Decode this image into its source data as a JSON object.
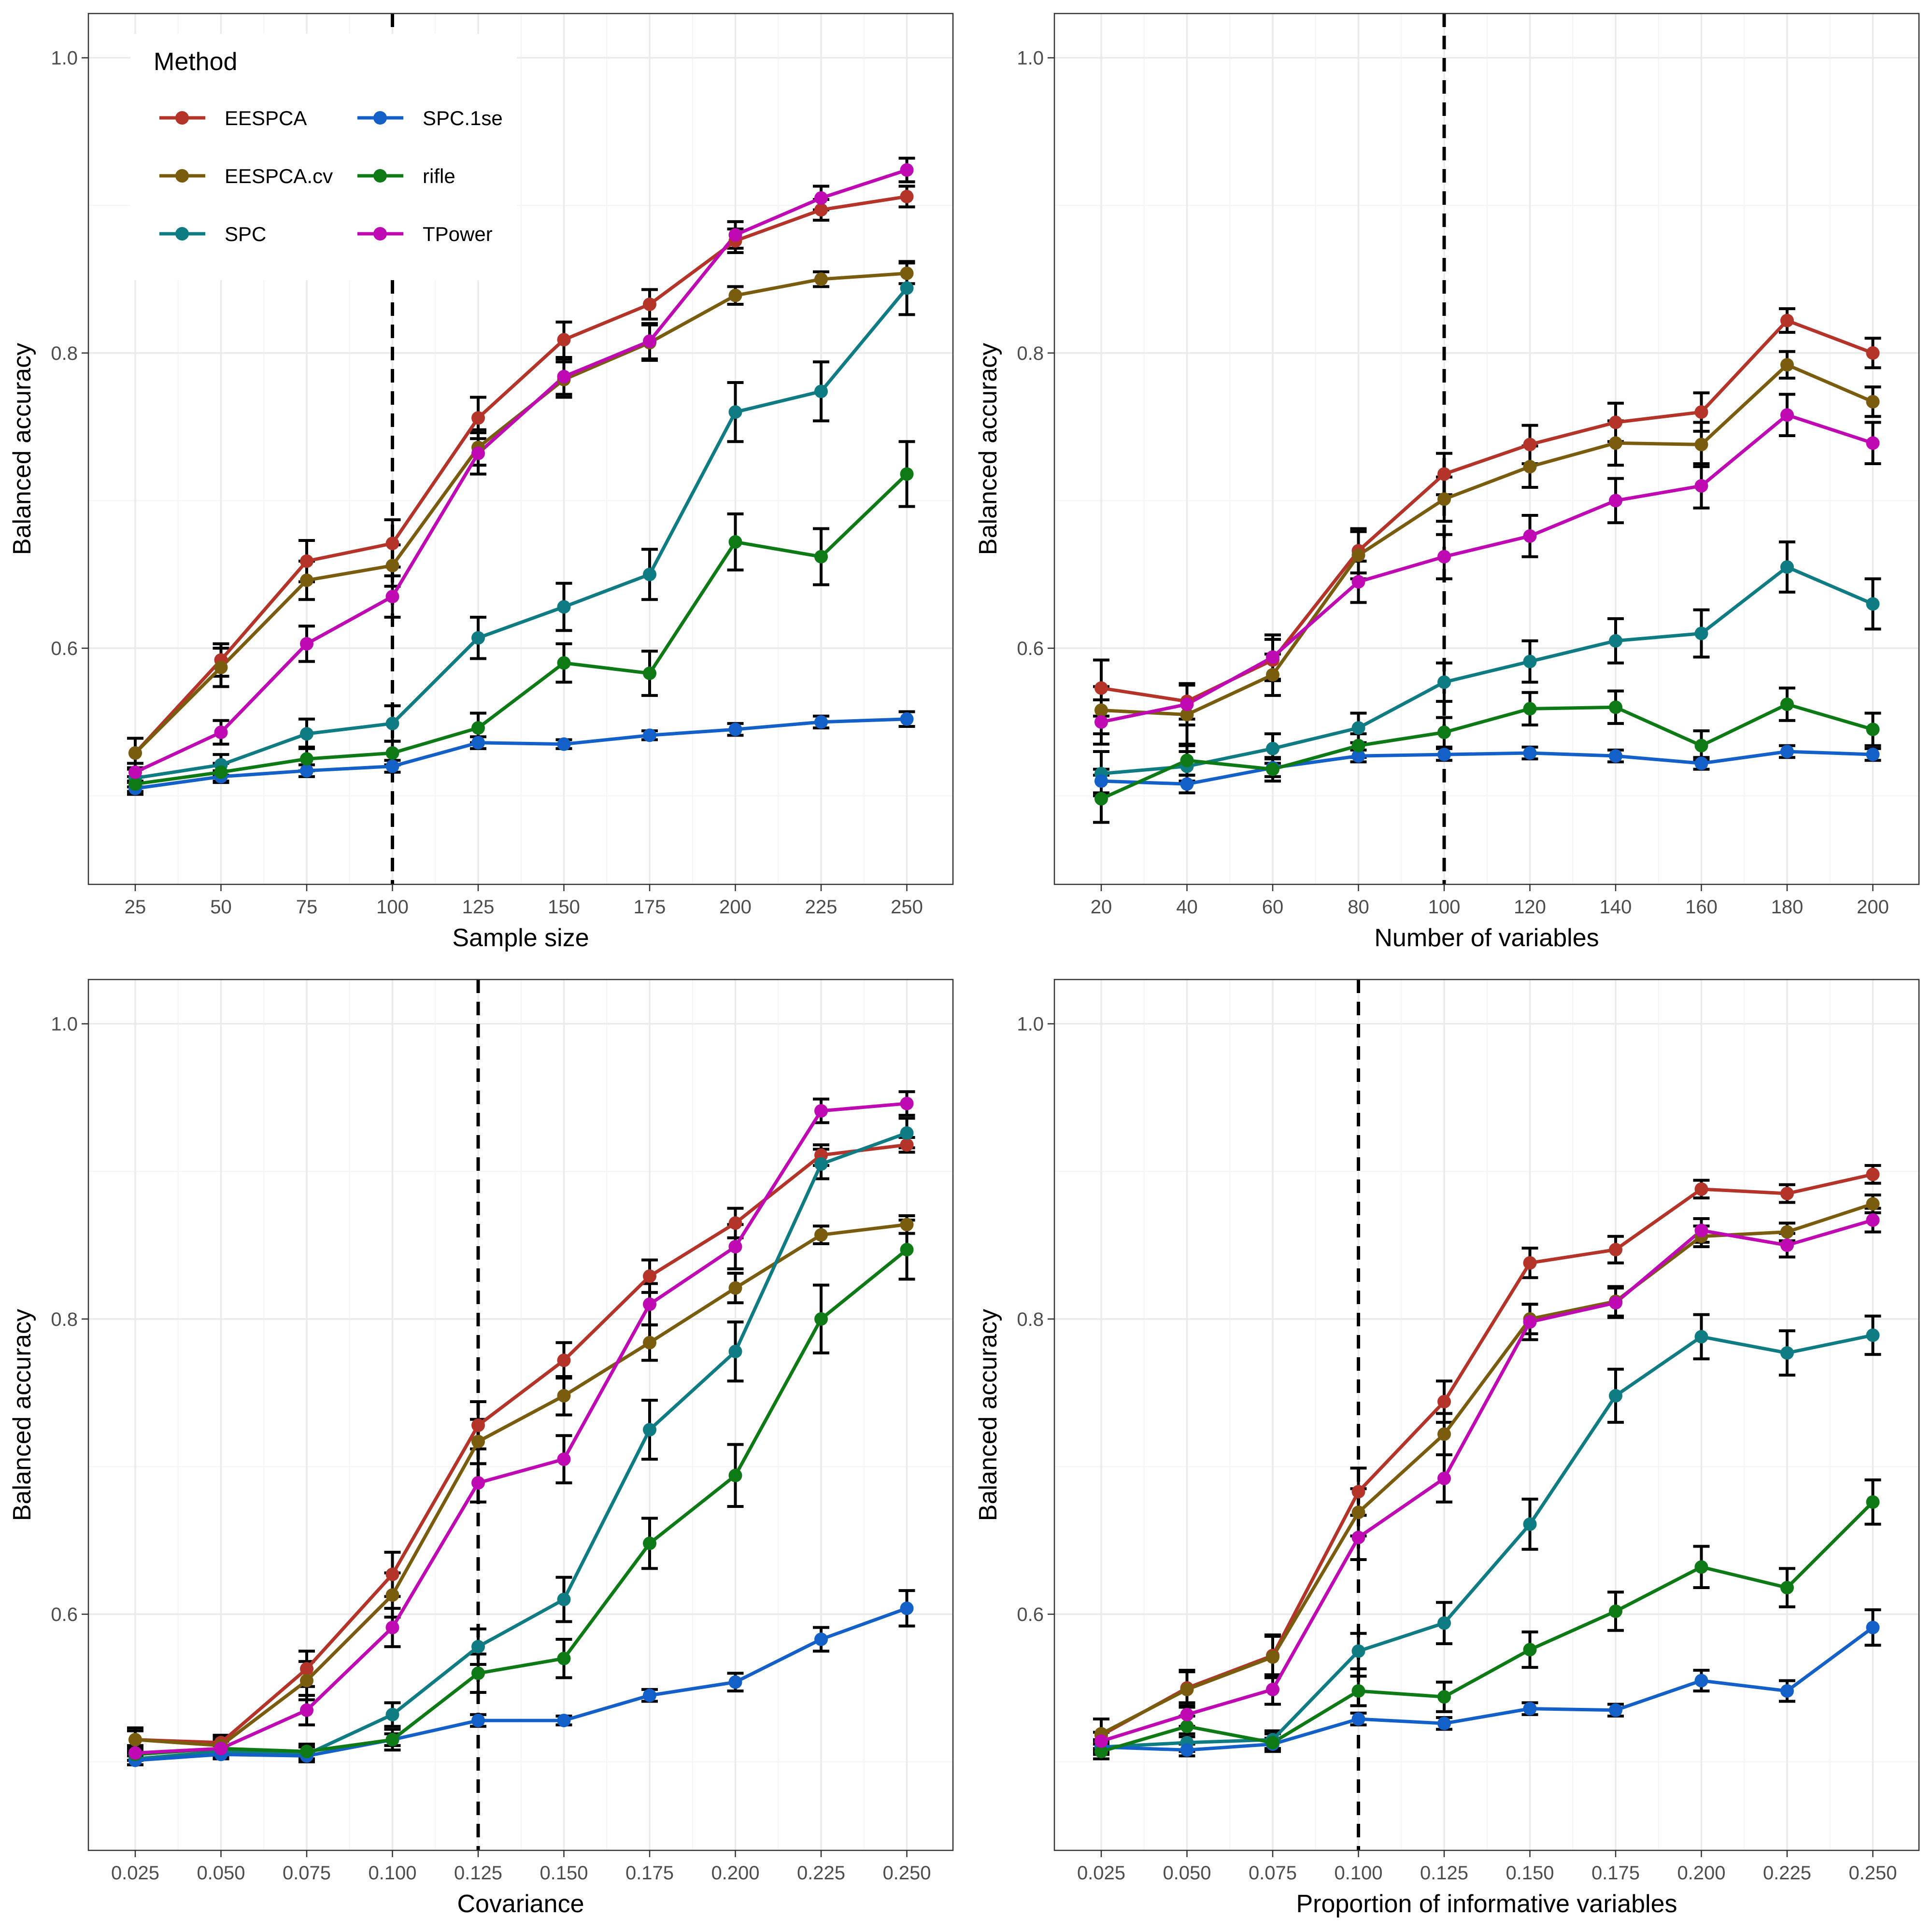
{
  "legend": {
    "title": "Method"
  },
  "colors": {
    "EESPCA": "#b5342a",
    "EESPCA.cv": "#7a5c0f",
    "SPC": "#0f7b82",
    "SPC.1se": "#1360c8",
    "rifle": "#0e7a16",
    "TPower": "#bf0ab4"
  },
  "chart_data": [
    {
      "type": "line",
      "xlabel": "Sample size",
      "ylabel": "Balanced accuracy",
      "ylim": [
        0.44,
        1.03
      ],
      "y_ticks": [
        0.6,
        0.8,
        1.0
      ],
      "y_tick_labels": [
        "0.6",
        "0.8",
        "1.0"
      ],
      "categories": [
        "25",
        "50",
        "75",
        "100",
        "125",
        "150",
        "175",
        "200",
        "225",
        "250"
      ],
      "reference_line": "100",
      "series": [
        {
          "name": "EESPCA",
          "values": [
            0.529,
            0.592,
            0.659,
            0.671,
            0.756,
            0.809,
            0.833,
            0.876,
            0.897,
            0.906
          ],
          "errors": [
            0.01,
            0.011,
            0.014,
            0.016,
            0.014,
            0.012,
            0.01,
            0.008,
            0.007,
            0.007
          ]
        },
        {
          "name": "EESPCA.cv",
          "values": [
            0.529,
            0.587,
            0.646,
            0.656,
            0.736,
            0.782,
            0.807,
            0.839,
            0.85,
            0.854
          ],
          "errors": [
            0.01,
            0.013,
            0.013,
            0.014,
            0.012,
            0.012,
            0.012,
            0.006,
            0.005,
            0.007
          ]
        },
        {
          "name": "SPC",
          "values": [
            0.512,
            0.521,
            0.542,
            0.549,
            0.607,
            0.628,
            0.65,
            0.76,
            0.774,
            0.844
          ],
          "errors": [
            0.006,
            0.007,
            0.01,
            0.012,
            0.014,
            0.016,
            0.017,
            0.02,
            0.02,
            0.018
          ]
        },
        {
          "name": "SPC.1se",
          "values": [
            0.505,
            0.513,
            0.517,
            0.52,
            0.536,
            0.535,
            0.541,
            0.545,
            0.55,
            0.552
          ],
          "errors": [
            0.004,
            0.004,
            0.004,
            0.004,
            0.004,
            0.003,
            0.003,
            0.004,
            0.004,
            0.005
          ]
        },
        {
          "name": "rifle",
          "values": [
            0.508,
            0.516,
            0.525,
            0.529,
            0.546,
            0.59,
            0.583,
            0.672,
            0.662,
            0.718
          ],
          "errors": [
            0.005,
            0.006,
            0.008,
            0.008,
            0.01,
            0.013,
            0.015,
            0.019,
            0.019,
            0.022
          ]
        },
        {
          "name": "TPower",
          "values": [
            0.516,
            0.543,
            0.603,
            0.635,
            0.732,
            0.784,
            0.808,
            0.88,
            0.905,
            0.924
          ],
          "errors": [
            0.006,
            0.008,
            0.012,
            0.014,
            0.014,
            0.012,
            0.012,
            0.009,
            0.008,
            0.008
          ]
        }
      ]
    },
    {
      "type": "line",
      "xlabel": "Number of variables",
      "ylabel": "Balanced accuracy",
      "ylim": [
        0.44,
        1.03
      ],
      "y_ticks": [
        0.6,
        0.8,
        1.0
      ],
      "y_tick_labels": [
        "0.6",
        "0.8",
        "1.0"
      ],
      "categories": [
        "20",
        "40",
        "60",
        "80",
        "100",
        "120",
        "140",
        "160",
        "180",
        "200"
      ],
      "reference_line": "100",
      "series": [
        {
          "name": "EESPCA",
          "values": [
            0.573,
            0.564,
            0.592,
            0.666,
            0.718,
            0.738,
            0.753,
            0.76,
            0.822,
            0.8
          ],
          "errors": [
            0.019,
            0.012,
            0.014,
            0.015,
            0.014,
            0.013,
            0.013,
            0.013,
            0.008,
            0.01
          ]
        },
        {
          "name": "EESPCA.cv",
          "values": [
            0.558,
            0.555,
            0.582,
            0.663,
            0.701,
            0.723,
            0.739,
            0.738,
            0.792,
            0.767
          ],
          "errors": [
            0.016,
            0.02,
            0.014,
            0.016,
            0.015,
            0.014,
            0.015,
            0.015,
            0.009,
            0.01
          ]
        },
        {
          "name": "SPC",
          "values": [
            0.515,
            0.52,
            0.532,
            0.546,
            0.577,
            0.591,
            0.605,
            0.61,
            0.655,
            0.63
          ],
          "errors": [
            0.015,
            0.01,
            0.01,
            0.01,
            0.013,
            0.014,
            0.015,
            0.016,
            0.017,
            0.017
          ]
        },
        {
          "name": "SPC.1se",
          "values": [
            0.51,
            0.508,
            0.519,
            0.527,
            0.528,
            0.529,
            0.527,
            0.522,
            0.53,
            0.528
          ],
          "errors": [
            0.008,
            0.006,
            0.006,
            0.004,
            0.004,
            0.004,
            0.004,
            0.004,
            0.004,
            0.004
          ]
        },
        {
          "name": "rifle",
          "values": [
            0.498,
            0.524,
            0.518,
            0.534,
            0.543,
            0.559,
            0.56,
            0.534,
            0.562,
            0.545
          ],
          "errors": [
            0.016,
            0.01,
            0.008,
            0.008,
            0.01,
            0.011,
            0.011,
            0.01,
            0.011,
            0.011
          ]
        },
        {
          "name": "TPower",
          "values": [
            0.55,
            0.562,
            0.594,
            0.645,
            0.662,
            0.676,
            0.7,
            0.71,
            0.758,
            0.739
          ],
          "errors": [
            0.015,
            0.014,
            0.015,
            0.014,
            0.015,
            0.014,
            0.015,
            0.015,
            0.014,
            0.014
          ]
        }
      ]
    },
    {
      "type": "line",
      "xlabel": "Covariance",
      "ylabel": "Balanced accuracy",
      "ylim": [
        0.44,
        1.03
      ],
      "y_ticks": [
        0.6,
        0.8,
        1.0
      ],
      "y_tick_labels": [
        "0.6",
        "0.8",
        "1.0"
      ],
      "categories": [
        "0.025",
        "0.050",
        "0.075",
        "0.100",
        "0.125",
        "0.150",
        "0.175",
        "0.200",
        "0.225",
        "0.250"
      ],
      "reference_line": "0.125",
      "series": [
        {
          "name": "EESPCA",
          "values": [
            0.515,
            0.513,
            0.563,
            0.627,
            0.728,
            0.772,
            0.829,
            0.865,
            0.911,
            0.918
          ],
          "errors": [
            0.006,
            0.005,
            0.012,
            0.015,
            0.016,
            0.012,
            0.011,
            0.01,
            0.007,
            0.005
          ]
        },
        {
          "name": "EESPCA.cv",
          "values": [
            0.515,
            0.511,
            0.555,
            0.613,
            0.717,
            0.748,
            0.784,
            0.821,
            0.857,
            0.864
          ],
          "errors": [
            0.008,
            0.006,
            0.013,
            0.015,
            0.015,
            0.013,
            0.012,
            0.01,
            0.006,
            0.006
          ]
        },
        {
          "name": "SPC",
          "values": [
            0.502,
            0.507,
            0.505,
            0.532,
            0.578,
            0.61,
            0.725,
            0.778,
            0.905,
            0.926
          ],
          "errors": [
            0.004,
            0.004,
            0.005,
            0.008,
            0.012,
            0.015,
            0.02,
            0.02,
            0.01,
            0.01
          ]
        },
        {
          "name": "SPC.1se",
          "values": [
            0.501,
            0.505,
            0.504,
            0.515,
            0.528,
            0.528,
            0.545,
            0.554,
            0.583,
            0.604
          ],
          "errors": [
            0.003,
            0.003,
            0.003,
            0.004,
            0.004,
            0.003,
            0.004,
            0.006,
            0.008,
            0.012
          ]
        },
        {
          "name": "rifle",
          "values": [
            0.505,
            0.509,
            0.507,
            0.515,
            0.56,
            0.57,
            0.648,
            0.694,
            0.8,
            0.847
          ],
          "errors": [
            0.004,
            0.005,
            0.005,
            0.007,
            0.013,
            0.013,
            0.017,
            0.021,
            0.023,
            0.02
          ]
        },
        {
          "name": "TPower",
          "values": [
            0.506,
            0.509,
            0.535,
            0.591,
            0.689,
            0.705,
            0.81,
            0.849,
            0.941,
            0.946
          ],
          "errors": [
            0.005,
            0.006,
            0.01,
            0.013,
            0.013,
            0.016,
            0.014,
            0.015,
            0.008,
            0.008
          ]
        }
      ]
    },
    {
      "type": "line",
      "xlabel": "Proportion of informative variables",
      "ylabel": "Balanced accuracy",
      "ylim": [
        0.44,
        1.03
      ],
      "y_ticks": [
        0.6,
        0.8,
        1.0
      ],
      "y_tick_labels": [
        "0.6",
        "0.8",
        "1.0"
      ],
      "categories": [
        "0.025",
        "0.050",
        "0.075",
        "0.100",
        "0.125",
        "0.150",
        "0.175",
        "0.200",
        "0.225",
        "0.250"
      ],
      "reference_line": "0.100",
      "series": [
        {
          "name": "EESPCA",
          "values": [
            0.518,
            0.55,
            0.572,
            0.683,
            0.744,
            0.838,
            0.847,
            0.888,
            0.885,
            0.898
          ],
          "errors": [
            0.011,
            0.012,
            0.014,
            0.016,
            0.014,
            0.01,
            0.009,
            0.006,
            0.006,
            0.006
          ]
        },
        {
          "name": "EESPCA.cv",
          "values": [
            0.519,
            0.549,
            0.571,
            0.669,
            0.722,
            0.8,
            0.812,
            0.856,
            0.859,
            0.878
          ],
          "errors": [
            0.01,
            0.012,
            0.014,
            0.016,
            0.014,
            0.01,
            0.01,
            0.007,
            0.006,
            0.006
          ]
        },
        {
          "name": "SPC",
          "values": [
            0.51,
            0.513,
            0.515,
            0.575,
            0.594,
            0.661,
            0.748,
            0.788,
            0.777,
            0.789
          ],
          "errors": [
            0.005,
            0.006,
            0.006,
            0.012,
            0.014,
            0.017,
            0.018,
            0.015,
            0.015,
            0.013
          ]
        },
        {
          "name": "SPC.1se",
          "values": [
            0.51,
            0.508,
            0.512,
            0.529,
            0.526,
            0.536,
            0.535,
            0.555,
            0.548,
            0.591
          ],
          "errors": [
            0.004,
            0.004,
            0.004,
            0.004,
            0.004,
            0.004,
            0.004,
            0.007,
            0.007,
            0.012
          ]
        },
        {
          "name": "rifle",
          "values": [
            0.507,
            0.524,
            0.513,
            0.548,
            0.544,
            0.576,
            0.602,
            0.632,
            0.618,
            0.676
          ],
          "errors": [
            0.005,
            0.007,
            0.006,
            0.01,
            0.01,
            0.012,
            0.013,
            0.014,
            0.013,
            0.015
          ]
        },
        {
          "name": "TPower",
          "values": [
            0.514,
            0.532,
            0.549,
            0.652,
            0.692,
            0.798,
            0.811,
            0.86,
            0.85,
            0.867
          ],
          "errors": [
            0.006,
            0.008,
            0.01,
            0.015,
            0.016,
            0.012,
            0.01,
            0.008,
            0.008,
            0.008
          ]
        }
      ]
    }
  ]
}
